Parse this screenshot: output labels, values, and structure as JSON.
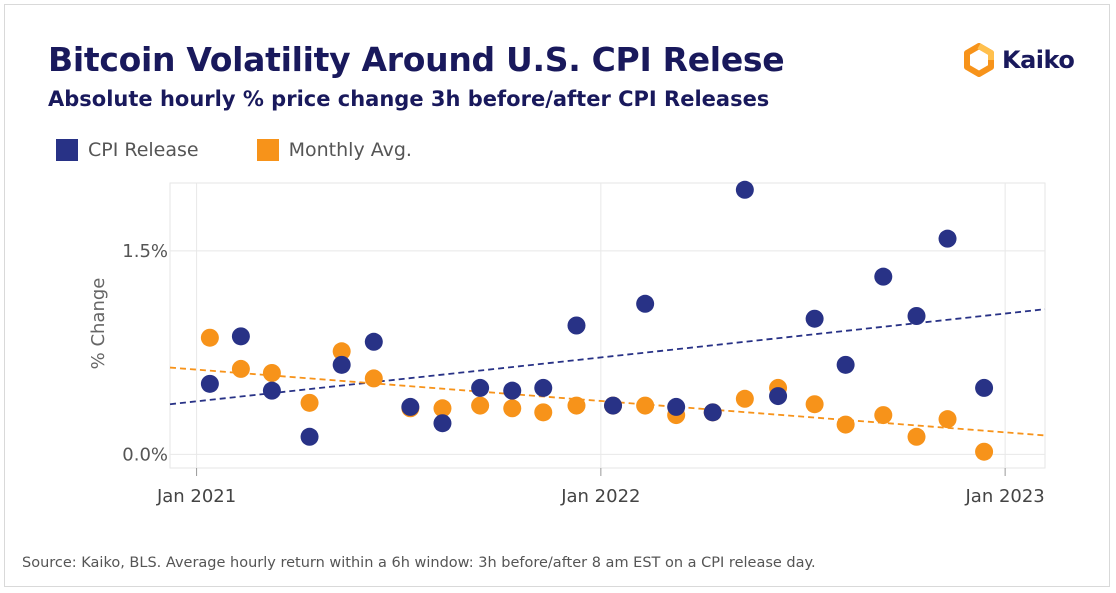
{
  "title": "Bitcoin Volatility Around U.S. CPI Relese",
  "subtitle": "Absolute hourly % price change 3h before/after CPI Releases",
  "logo_text": "Kaiko",
  "source": "Source: Kaiko, BLS. Average hourly return within a 6h window: 3h before/after 8 am EST on a CPI release day.",
  "colors": {
    "cpi": "#283286",
    "monthly": "#f7931a",
    "title": "#19195c"
  },
  "chart_data": {
    "type": "scatter",
    "ylabel": "% Change",
    "ylim": [
      -0.1,
      2.0
    ],
    "xlim": [
      "2020-12-08",
      "2023-02-06"
    ],
    "yticks": [
      {
        "value": 0,
        "label": "0.0%"
      },
      {
        "value": 1.5,
        "label": "1.5%"
      }
    ],
    "xticks": [
      {
        "date": "2021-01-01",
        "label": "Jan 2021"
      },
      {
        "date": "2022-01-01",
        "label": "Jan 2022"
      },
      {
        "date": "2023-01-01",
        "label": "Jan 2023"
      }
    ],
    "legend": [
      {
        "key": "cpi",
        "label": "CPI Release"
      },
      {
        "key": "monthly",
        "label": "Monthly Avg."
      }
    ],
    "series": [
      {
        "name": "CPI Release",
        "key": "cpi",
        "points": [
          {
            "x": "2021-01-13",
            "y": 0.52
          },
          {
            "x": "2021-02-10",
            "y": 0.87
          },
          {
            "x": "2021-03-10",
            "y": 0.47
          },
          {
            "x": "2021-04-13",
            "y": 0.13
          },
          {
            "x": "2021-05-12",
            "y": 0.66
          },
          {
            "x": "2021-06-10",
            "y": 0.83
          },
          {
            "x": "2021-07-13",
            "y": 0.35
          },
          {
            "x": "2021-08-11",
            "y": 0.23
          },
          {
            "x": "2021-09-14",
            "y": 0.49
          },
          {
            "x": "2021-10-13",
            "y": 0.47
          },
          {
            "x": "2021-11-10",
            "y": 0.49
          },
          {
            "x": "2021-12-10",
            "y": 0.95
          },
          {
            "x": "2022-01-12",
            "y": 0.36
          },
          {
            "x": "2022-02-10",
            "y": 1.11
          },
          {
            "x": "2022-03-10",
            "y": 0.35
          },
          {
            "x": "2022-04-12",
            "y": 0.31
          },
          {
            "x": "2022-05-11",
            "y": 1.95
          },
          {
            "x": "2022-06-10",
            "y": 0.43
          },
          {
            "x": "2022-07-13",
            "y": 1.0
          },
          {
            "x": "2022-08-10",
            "y": 0.66
          },
          {
            "x": "2022-09-13",
            "y": 1.31
          },
          {
            "x": "2022-10-13",
            "y": 1.02
          },
          {
            "x": "2022-11-10",
            "y": 1.59
          },
          {
            "x": "2022-12-13",
            "y": 0.49
          }
        ]
      },
      {
        "name": "Monthly Avg.",
        "key": "monthly",
        "points": [
          {
            "x": "2021-01-13",
            "y": 0.86
          },
          {
            "x": "2021-02-10",
            "y": 0.63
          },
          {
            "x": "2021-03-10",
            "y": 0.6
          },
          {
            "x": "2021-04-13",
            "y": 0.38
          },
          {
            "x": "2021-05-12",
            "y": 0.76
          },
          {
            "x": "2021-06-10",
            "y": 0.56
          },
          {
            "x": "2021-07-13",
            "y": 0.34
          },
          {
            "x": "2021-08-11",
            "y": 0.34
          },
          {
            "x": "2021-09-14",
            "y": 0.36
          },
          {
            "x": "2021-10-13",
            "y": 0.34
          },
          {
            "x": "2021-11-10",
            "y": 0.31
          },
          {
            "x": "2021-12-10",
            "y": 0.36
          },
          {
            "x": "2022-01-12",
            "y": 0.36
          },
          {
            "x": "2022-02-10",
            "y": 0.36
          },
          {
            "x": "2022-03-10",
            "y": 0.29
          },
          {
            "x": "2022-04-12",
            "y": 0.31
          },
          {
            "x": "2022-05-11",
            "y": 0.41
          },
          {
            "x": "2022-06-10",
            "y": 0.49
          },
          {
            "x": "2022-07-13",
            "y": 0.37
          },
          {
            "x": "2022-08-10",
            "y": 0.22
          },
          {
            "x": "2022-09-13",
            "y": 0.29
          },
          {
            "x": "2022-10-13",
            "y": 0.13
          },
          {
            "x": "2022-11-10",
            "y": 0.26
          },
          {
            "x": "2022-12-13",
            "y": 0.02
          }
        ]
      }
    ],
    "trendlines": [
      {
        "key": "cpi",
        "name": "CPI Release trend",
        "from": {
          "x": "2020-12-08",
          "y": 0.37
        },
        "to": {
          "x": "2023-02-06",
          "y": 1.07
        }
      },
      {
        "key": "monthly",
        "name": "Monthly Avg. trend",
        "from": {
          "x": "2020-12-08",
          "y": 0.64
        },
        "to": {
          "x": "2023-02-06",
          "y": 0.14
        }
      }
    ]
  }
}
